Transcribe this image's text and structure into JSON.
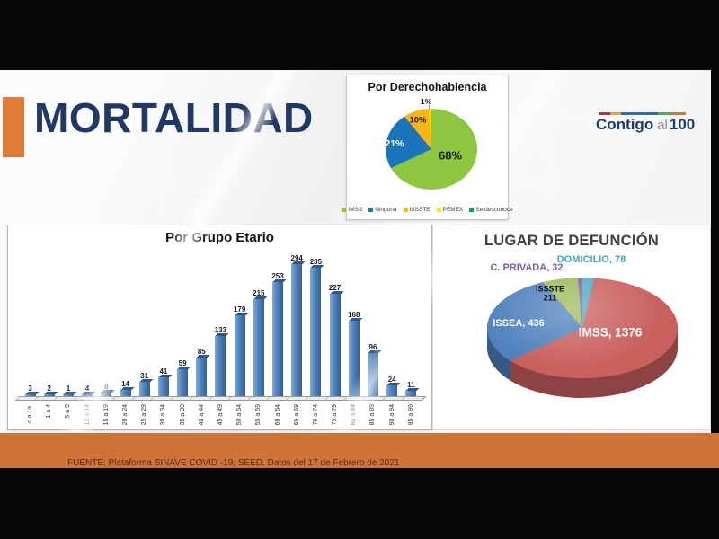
{
  "slide": {
    "title": "MORTALIDAD",
    "logo": {
      "part1": "Contigo",
      "part2": "al",
      "part3": "100"
    },
    "footer": "FUENTE: Plataforma SINAVE COVID -19, SEED. Datos del 17 de Febrero de 2021"
  },
  "chart_data": [
    {
      "type": "pie",
      "title": "Por Derechohabiencia",
      "labels": [
        "IMSS",
        "Ninguna",
        "ISSSTE",
        "PEMEX",
        "Se desconoce"
      ],
      "values_pct": [
        68,
        21,
        10,
        1,
        0
      ],
      "colors": [
        "#8dc63f",
        "#1b75bb",
        "#fbb515",
        "#ffe400",
        "#00a651"
      ],
      "slice_labels": [
        "68%",
        "21%",
        "10%",
        "1%",
        ""
      ],
      "legend_position": "bottom"
    },
    {
      "type": "bar",
      "title": "Por Grupo Etario",
      "categories": [
        "< a 1a.",
        "1 a 4",
        "5 a 9",
        "10 a 14",
        "15 a 19",
        "20 a 24",
        "25 a 29",
        "30 a 34",
        "35 a 39",
        "40 a 44",
        "45 a 49",
        "50 a 54",
        "55 a 59",
        "60 a 64",
        "65 a 69",
        "70 a 74",
        "75 a 79",
        "80 a 84",
        "85 a 89",
        "90 a 94",
        "95 a 99"
      ],
      "values": [
        3,
        2,
        1,
        4,
        8,
        14,
        31,
        41,
        59,
        85,
        133,
        179,
        215,
        253,
        294,
        285,
        227,
        168,
        96,
        24,
        11
      ],
      "bar_color": "#4f81bd",
      "xlabel": "",
      "ylabel": "",
      "ylim": [
        0,
        300
      ],
      "grid": false
    },
    {
      "type": "pie3d",
      "title": "LUGAR DE DEFUNCIÓN",
      "labels": [
        "DOMICILIO",
        "IMSS",
        "ISSEA",
        "ISSSTE",
        "C. PRIVADA"
      ],
      "values": [
        78,
        1376,
        436,
        211,
        32
      ],
      "colors": [
        "#4bacc6",
        "#c8605d",
        "#4f81bd",
        "#9bbb59",
        "#8064a2"
      ],
      "data_labels": [
        "DOMICILIO, 78",
        "IMSS, 1376",
        "ISSEA, 436",
        "ISSSTE\n211",
        "C. PRIVADA, 32"
      ]
    }
  ]
}
